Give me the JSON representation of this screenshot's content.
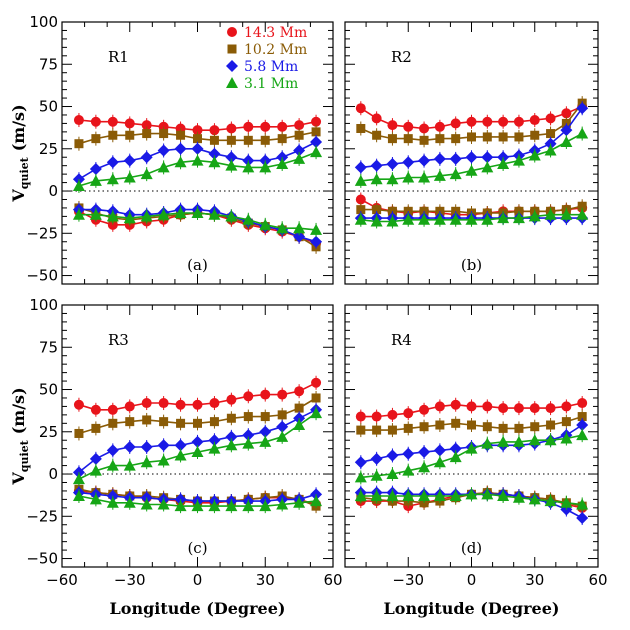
{
  "chart_data": {
    "type": "line",
    "xlabel": "Longitude (Degree)",
    "ylabel_main": "V",
    "ylabel_sub": "quiet",
    "ylabel_unit": "(m/s)",
    "xlim": [
      -60,
      60
    ],
    "ylim": [
      -55,
      100
    ],
    "x_ticks": [
      -60,
      -30,
      0,
      30,
      60
    ],
    "x_tick_labels": [
      "−60",
      "−30",
      "0",
      "30",
      "60"
    ],
    "y_ticks": [
      -50,
      -25,
      0,
      25,
      50,
      75,
      100
    ],
    "y_tick_labels": [
      "−50",
      "−25",
      "0",
      "25",
      "50",
      "75",
      "100"
    ],
    "legend_position": "top-right of panel (a)",
    "series_styles": [
      {
        "name": "14.3 Mm",
        "color": "#e8141b",
        "marker": "circle"
      },
      {
        "name": "10.2 Mm",
        "color": "#8a5b06",
        "marker": "square"
      },
      {
        "name": "5.8 Mm",
        "color": "#1a1ae6",
        "marker": "diamond"
      },
      {
        "name": "3.1 Mm",
        "color": "#16a616",
        "marker": "triangle"
      }
    ],
    "panels": [
      {
        "name": "R1",
        "tag": "(a)",
        "x": [
          -52.5,
          -45,
          -37.5,
          -30,
          -22.5,
          -15,
          -7.5,
          0,
          7.5,
          15,
          22.5,
          30,
          37.5,
          45,
          52.5
        ],
        "series": [
          {
            "upper": [
              42,
              41,
              41,
              40,
              39,
              38,
              37,
              36,
              36,
              37,
              38,
              38,
              38,
              39,
              41
            ],
            "lower": [
              -12,
              -17,
              -20,
              -20,
              -18,
              -17,
              -14,
              -13,
              -14,
              -17,
              -20,
              -22,
              -24,
              -27,
              -31
            ]
          },
          {
            "upper": [
              28,
              31,
              33,
              33,
              34,
              34,
              33,
              31,
              30,
              30,
              30,
              30,
              31,
              33,
              35
            ],
            "lower": [
              -10,
              -13,
              -16,
              -17,
              -16,
              -15,
              -14,
              -13,
              -14,
              -16,
              -19,
              -21,
              -23,
              -27,
              -33
            ]
          },
          {
            "upper": [
              7,
              13,
              17,
              18,
              20,
              24,
              25,
              25,
              22,
              20,
              18,
              18,
              20,
              24,
              29
            ],
            "lower": [
              -11,
              -11,
              -12,
              -14,
              -14,
              -13,
              -11,
              -11,
              -12,
              -15,
              -18,
              -21,
              -23,
              -27,
              -30
            ]
          },
          {
            "upper": [
              3,
              6,
              7,
              8,
              10,
              14,
              17,
              18,
              17,
              15,
              14,
              14,
              16,
              19,
              23
            ],
            "lower": [
              -14,
              -14,
              -15,
              -16,
              -15,
              -14,
              -13,
              -13,
              -14,
              -15,
              -17,
              -20,
              -22,
              -22,
              -23
            ]
          }
        ]
      },
      {
        "name": "R2",
        "tag": "(b)",
        "x": [
          -52.5,
          -45,
          -37.5,
          -30,
          -22.5,
          -15,
          -7.5,
          0,
          7.5,
          15,
          22.5,
          30,
          37.5,
          45,
          52.5
        ],
        "series": [
          {
            "upper": [
              49,
              43,
              39,
              38,
              37,
              38,
              40,
              41,
              41,
              41,
              41,
              42,
              43,
              46,
              50
            ],
            "lower": [
              -5,
              -10,
              -12,
              -13,
              -12,
              -13,
              -14,
              -14,
              -13,
              -12,
              -12,
              -12,
              -12,
              -11,
              -10
            ]
          },
          {
            "upper": [
              37,
              33,
              31,
              31,
              30,
              31,
              31,
              32,
              32,
              32,
              32,
              33,
              34,
              40,
              52
            ],
            "lower": [
              -11,
              -11,
              -12,
              -12,
              -12,
              -12,
              -12,
              -13,
              -13,
              -13,
              -12,
              -12,
              -12,
              -11,
              -9
            ]
          },
          {
            "upper": [
              14,
              15,
              16,
              17,
              18,
              19,
              19,
              20,
              20,
              20,
              21,
              24,
              28,
              36,
              49
            ],
            "lower": [
              -16,
              -16,
              -16,
              -16,
              -16,
              -16,
              -16,
              -16,
              -16,
              -16,
              -16,
              -16,
              -16,
              -16,
              -16
            ]
          },
          {
            "upper": [
              6,
              7,
              7,
              8,
              8,
              9,
              10,
              12,
              14,
              16,
              18,
              21,
              24,
              29,
              34
            ],
            "lower": [
              -17,
              -18,
              -18,
              -17,
              -17,
              -17,
              -17,
              -17,
              -17,
              -16,
              -16,
              -15,
              -14,
              -14,
              -14
            ]
          }
        ]
      },
      {
        "name": "R3",
        "tag": "(c)",
        "x": [
          -52.5,
          -45,
          -37.5,
          -30,
          -22.5,
          -15,
          -7.5,
          0,
          7.5,
          15,
          22.5,
          30,
          37.5,
          45,
          52.5
        ],
        "series": [
          {
            "upper": [
              41,
              38,
              38,
              40,
              42,
              42,
              41,
              41,
              42,
              44,
              46,
              47,
              47,
              49,
              54
            ],
            "lower": [
              -10,
              -11,
              -12,
              -13,
              -14,
              -15,
              -16,
              -17,
              -17,
              -16,
              -15,
              -14,
              -14,
              -15,
              -18
            ]
          },
          {
            "upper": [
              24,
              27,
              30,
              31,
              32,
              31,
              30,
              30,
              31,
              33,
              34,
              34,
              35,
              39,
              45
            ],
            "lower": [
              -9,
              -11,
              -12,
              -13,
              -13,
              -14,
              -15,
              -16,
              -16,
              -16,
              -15,
              -14,
              -13,
              -15,
              -19
            ]
          },
          {
            "upper": [
              1,
              9,
              14,
              16,
              16,
              17,
              17,
              19,
              20,
              22,
              23,
              25,
              28,
              33,
              38
            ],
            "lower": [
              -11,
              -12,
              -13,
              -14,
              -14,
              -15,
              -15,
              -16,
              -16,
              -16,
              -16,
              -16,
              -15,
              -15,
              -12
            ]
          },
          {
            "upper": [
              -3,
              2,
              5,
              5,
              7,
              8,
              11,
              13,
              15,
              17,
              18,
              19,
              22,
              29,
              36
            ],
            "lower": [
              -13,
              -15,
              -17,
              -17,
              -18,
              -18,
              -19,
              -19,
              -19,
              -19,
              -19,
              -19,
              -18,
              -17,
              -16
            ]
          }
        ]
      },
      {
        "name": "R4",
        "tag": "(d)",
        "x": [
          -52.5,
          -45,
          -37.5,
          -30,
          -22.5,
          -15,
          -7.5,
          0,
          7.5,
          15,
          22.5,
          30,
          37.5,
          45,
          52.5
        ],
        "series": [
          {
            "upper": [
              34,
              34,
              35,
              36,
              38,
              40,
              41,
              40,
              40,
              39,
              39,
              39,
              39,
              40,
              42
            ],
            "lower": [
              -16,
              -16,
              -16,
              -19,
              -17,
              -15,
              -13,
              -12,
              -11,
              -12,
              -13,
              -14,
              -15,
              -18,
              -20
            ]
          },
          {
            "upper": [
              26,
              26,
              26,
              27,
              28,
              29,
              30,
              29,
              28,
              27,
              27,
              28,
              29,
              31,
              34
            ],
            "lower": [
              -14,
              -15,
              -16,
              -16,
              -17,
              -16,
              -14,
              -12,
              -11,
              -12,
              -13,
              -14,
              -15,
              -17,
              -19
            ]
          },
          {
            "upper": [
              7,
              9,
              11,
              12,
              13,
              14,
              15,
              16,
              17,
              17,
              17,
              18,
              20,
              23,
              29
            ],
            "lower": [
              -11,
              -11,
              -11,
              -12,
              -12,
              -12,
              -12,
              -12,
              -12,
              -12,
              -13,
              -15,
              -17,
              -21,
              -26
            ]
          },
          {
            "upper": [
              -2,
              -1,
              0,
              2,
              4,
              7,
              10,
              15,
              18,
              19,
              19,
              20,
              20,
              21,
              23
            ],
            "lower": [
              -13,
              -13,
              -13,
              -13,
              -13,
              -13,
              -13,
              -12,
              -12,
              -13,
              -14,
              -15,
              -16,
              -17,
              -18
            ]
          }
        ]
      }
    ]
  }
}
